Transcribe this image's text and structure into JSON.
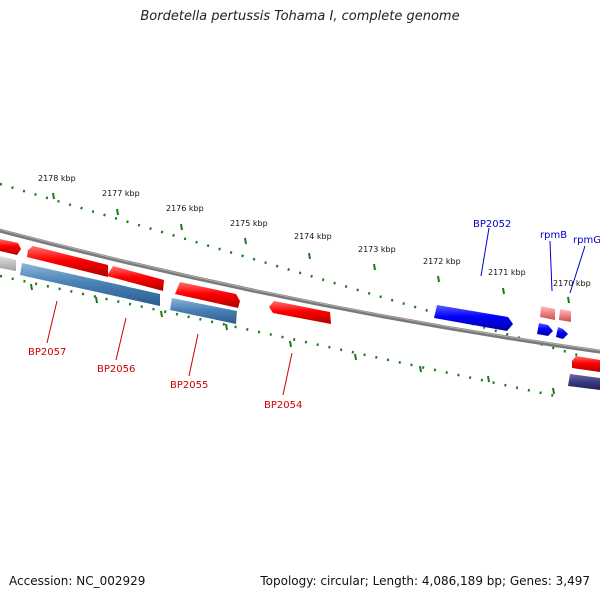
{
  "header": {
    "title": "Bordetella pertussis Tohama I, complete genome"
  },
  "footer": {
    "accession": "Accession: NC_002929",
    "summary": "Topology: circular; Length: 4,086,189 bp; Genes: 3,497"
  },
  "scale": {
    "labels": [
      "2178 kbp",
      "2177 kbp",
      "2176 kbp",
      "2175 kbp",
      "2174 kbp",
      "2173 kbp",
      "2172 kbp",
      "2171 kbp",
      "2170 kbp"
    ]
  },
  "genes": {
    "bp2057": "BP2057",
    "bp2056": "BP2056",
    "bp2055": "BP2055",
    "bp2054": "BP2054",
    "bp2052": "BP2052",
    "rpmb": "rpmB",
    "rpmg": "rpmG"
  },
  "colors": {
    "backbone": "#808080",
    "forward_cds": "#ff0000",
    "reverse_cds": "#4a82b8",
    "highlight": "#0000ff",
    "scale_ticks": "#1a7a1a",
    "forward_label": "#cc0000",
    "highlight_label": "#0000cc"
  }
}
